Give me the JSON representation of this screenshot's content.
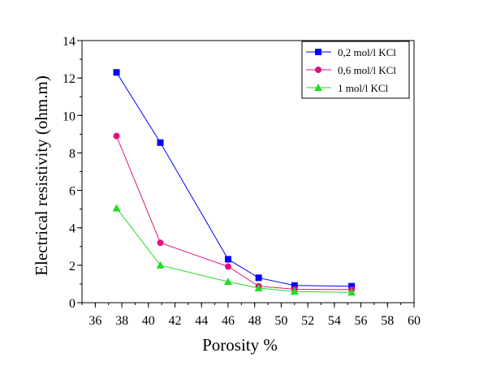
{
  "chart_data": {
    "type": "line",
    "xlabel": "Porosity %",
    "ylabel": "Electrical resistivity (ohm.m)",
    "xlim": [
      35,
      60
    ],
    "ylim": [
      0,
      14
    ],
    "xticks": [
      36,
      38,
      40,
      42,
      44,
      46,
      48,
      50,
      52,
      54,
      56,
      58,
      60
    ],
    "yticks": [
      0,
      2,
      4,
      6,
      8,
      10,
      12,
      14
    ],
    "grid": false,
    "legend_position": "top-right",
    "series": [
      {
        "name": "0,2 mol/l KCl",
        "color": "#0000ff",
        "marker": "square",
        "x": [
          37.6,
          40.9,
          46.0,
          48.3,
          51.0,
          55.3
        ],
        "y": [
          12.3,
          8.55,
          2.32,
          1.33,
          0.92,
          0.88
        ]
      },
      {
        "name": "0,6 mol/l KCl",
        "color": "#e0127f",
        "marker": "circle",
        "x": [
          37.6,
          40.9,
          46.0,
          48.3,
          51.0,
          55.3
        ],
        "y": [
          8.9,
          3.2,
          1.93,
          0.88,
          0.72,
          0.7
        ]
      },
      {
        "name": "1 mol/l KCl",
        "color": "#22dd22",
        "marker": "triangle",
        "x": [
          37.6,
          40.9,
          46.0,
          48.3,
          51.0,
          55.3
        ],
        "y": [
          5.05,
          2.0,
          1.12,
          0.78,
          0.6,
          0.55
        ]
      }
    ]
  }
}
